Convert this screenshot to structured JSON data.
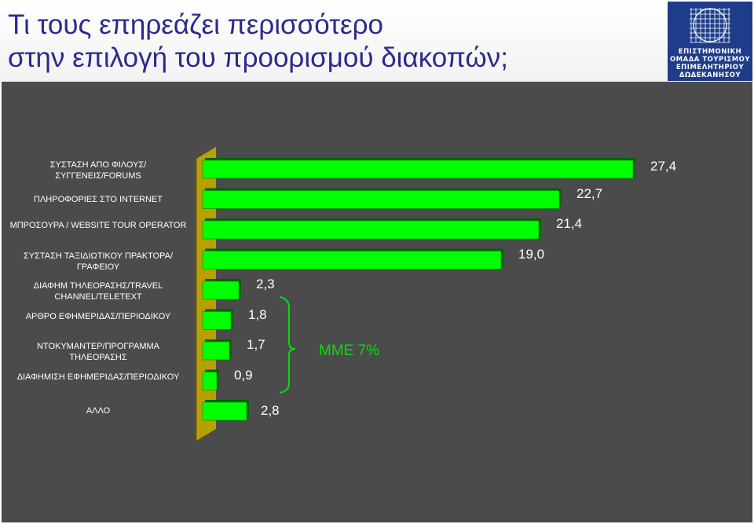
{
  "title": {
    "line1": "Τι τους επηρεάζει περισσότερο",
    "line2": "στην επιλογή του προορισμού διακοπών;"
  },
  "logo": {
    "lines": [
      "ΕΠΙΣΤΗΜΟΝΙΚΗ",
      "ΟΜΑΔΑ ΤΟΥΡΙΣΜΟΥ",
      "ΕΠΙΜΕΛΗΤΗΡΙΟΥ",
      "ΔΩΔΕΚΑΝΗΣΟΥ"
    ]
  },
  "colors": {
    "bar": "#00ff00",
    "panel": "#4b4b4b",
    "title": "#2a2a8e",
    "logo_bg": "#1f3c8a",
    "axis_wall": "#b8a000"
  },
  "chart_data": {
    "type": "bar",
    "orientation": "horizontal",
    "categories": [
      "ΣΥΣΤΑΣΗ ΑΠΟ ΦΙΛΟΥΣ/ΣΥΓΓΕΝΕΙΣ/FORUMS",
      "ΠΛΗΡΟΦΟΡΙΕΣ ΣΤΟ INTERNET",
      "ΜΠΡΟΣΟΥΡΑ / WEBSITE TOUR OPERATOR",
      "ΣΥΣΤΑΣΗ ΤΑΞΙΔΙΩΤΙΚΟΥ ΠΡΑΚΤΟΡΑ/ΓΡΑΦΕΙΟΥ",
      "ΔΙΑΦΗΜ ΤΗΛΕΟΡΑΣΗΣ/TRAVEL CHANNEL/TELETEXT",
      "ΑΡΘΡΟ ΕΦΗΜΕΡΙΔΑΣ/ΠΕΡΙΟΔΙΚΟΥ",
      "ΝΤΟΚΥΜΑΝΤΕΡ/ΠΡΟΓΡΑΜΜΑ ΤΗΛΕΟΡΑΣΗΣ",
      "ΔΙΑΦΗΜΙΣΗ ΕΦΗΜΕΡΙΔΑΣ/ΠΕΡΙΟΔΙΚΟΥ",
      "ΑΛΛΟ"
    ],
    "values": [
      27.4,
      22.7,
      21.4,
      19.0,
      2.3,
      1.8,
      1.7,
      0.9,
      2.8
    ],
    "value_labels": [
      "27,4",
      "22,7",
      "21,4",
      "19,0",
      "2,3",
      "1,8",
      "1,7",
      "0,9",
      "2,8"
    ],
    "annotation": "ΜΜΕ 7%",
    "grid": false,
    "legend": "none"
  }
}
